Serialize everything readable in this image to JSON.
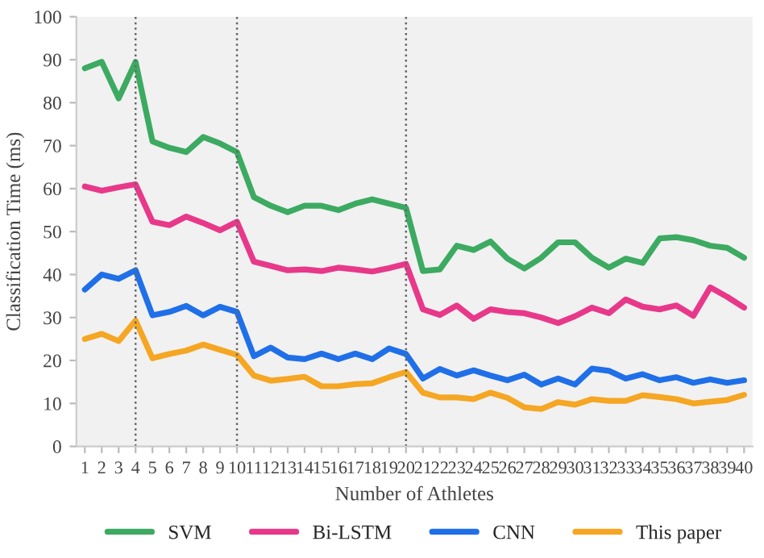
{
  "chart_data": {
    "type": "line",
    "xlabel": "Number of Athletes",
    "ylabel": "Classification Time (ms)",
    "x": [
      1,
      2,
      3,
      4,
      5,
      6,
      7,
      8,
      9,
      10,
      11,
      12,
      13,
      14,
      15,
      16,
      17,
      18,
      19,
      20,
      21,
      22,
      23,
      24,
      25,
      26,
      27,
      28,
      29,
      30,
      31,
      32,
      33,
      34,
      35,
      36,
      37,
      38,
      39,
      40
    ],
    "xlim": [
      0.5,
      40.5
    ],
    "xticks": [
      1,
      2,
      3,
      4,
      5,
      6,
      7,
      8,
      9,
      10,
      11,
      12,
      13,
      14,
      15,
      16,
      17,
      18,
      19,
      20,
      21,
      22,
      23,
      24,
      25,
      26,
      27,
      28,
      29,
      30,
      31,
      32,
      33,
      34,
      35,
      36,
      37,
      38,
      39,
      40
    ],
    "ylim": [
      0,
      100
    ],
    "yticks": [
      0,
      10,
      20,
      30,
      40,
      50,
      60,
      70,
      80,
      90,
      100
    ],
    "series": [
      {
        "name": "SVM",
        "color": "#3daa62",
        "values": [
          88,
          89.5,
          81,
          89.5,
          71,
          69.5,
          68.5,
          72,
          70.5,
          68.5,
          58,
          56,
          54.5,
          56,
          56,
          55,
          56.5,
          57.5,
          56.5,
          55.5,
          40.8,
          41.2,
          46.7,
          45.7,
          47.7,
          43.7,
          41.4,
          43.9,
          47.5,
          47.5,
          43.9,
          41.6,
          43.7,
          42.7,
          48.4,
          48.7,
          48,
          46.7,
          46.2,
          43.9
        ]
      },
      {
        "name": "Bi-LSTM",
        "color": "#e8388a",
        "values": [
          60.5,
          59.5,
          60.3,
          61,
          52.3,
          51.5,
          53.5,
          52,
          50.3,
          52.3,
          43,
          42,
          41,
          41.2,
          40.8,
          41.6,
          41.2,
          40.7,
          41.5,
          42.5,
          31.9,
          30.6,
          32.8,
          29.7,
          31.9,
          31.3,
          31,
          30,
          28.7,
          30.3,
          32.3,
          31,
          34.2,
          32.5,
          31.9,
          32.8,
          30.4,
          37,
          34.8,
          32.3
        ]
      },
      {
        "name": "CNN",
        "color": "#1f6fe8",
        "values": [
          36.5,
          40,
          39,
          41,
          30.5,
          31.3,
          32.7,
          30.5,
          32.5,
          31.3,
          21,
          23,
          20.7,
          20.3,
          21.6,
          20.3,
          21.6,
          20.3,
          22.8,
          21.5,
          15.8,
          18,
          16.5,
          17.7,
          16.5,
          15.4,
          16.7,
          14.4,
          15.8,
          14.4,
          18.1,
          17.6,
          15.8,
          16.8,
          15.4,
          16.1,
          14.8,
          15.6,
          14.8,
          15.4
        ]
      },
      {
        "name": "This paper",
        "color": "#f5a623",
        "values": [
          25,
          26.2,
          24.5,
          29.3,
          20.5,
          21.5,
          22.3,
          23.7,
          22.5,
          21.3,
          16.5,
          15.3,
          15.7,
          16.2,
          14,
          14,
          14.5,
          14.7,
          16.1,
          17.3,
          12.5,
          11.4,
          11.4,
          11,
          12.5,
          11.3,
          9.1,
          8.7,
          10.3,
          9.7,
          11,
          10.6,
          10.6,
          11.9,
          11.5,
          11,
          10,
          10.4,
          10.8,
          12
        ]
      }
    ],
    "ref_lines": [
      {
        "axis": "x",
        "value": 4,
        "color": "#666666",
        "line_style": "dotted"
      },
      {
        "axis": "x",
        "value": 10,
        "color": "#666666",
        "line_style": "dotted"
      },
      {
        "axis": "x",
        "value": 20,
        "color": "#666666",
        "line_style": "dotted"
      }
    ],
    "grid": false,
    "legend": "bottom",
    "line_style": "solid",
    "marker": "none"
  }
}
